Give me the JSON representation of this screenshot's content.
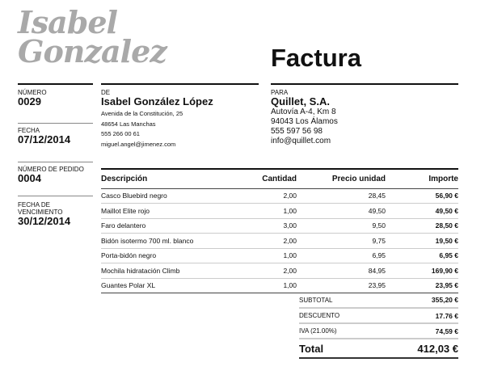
{
  "logo": {
    "line1": "Isabel",
    "line2": "Gonzalez"
  },
  "title": "Factura",
  "meta": [
    {
      "label": "NÚMERO",
      "value": "0029"
    },
    {
      "label": "FECHA",
      "value": "07/12/2014"
    },
    {
      "label": "NÚMERO DE PEDIDO",
      "value": "0004"
    },
    {
      "label": "FECHA DE VENCIMIENTO",
      "value": "30/12/2014"
    }
  ],
  "from": {
    "label": "DE",
    "name": "Isabel González López",
    "lines": [
      "Avenida de la Constitución, 25",
      "48654 Las Manchas",
      "555 266 00 61",
      "miguel.angel@jimenez.com"
    ]
  },
  "to": {
    "label": "PARA",
    "name": "Quillet, S.A.",
    "lines": [
      "Autovía A-4, Km 8",
      "94043 Los Álamos",
      "555 597 56 98",
      "info@quillet.com"
    ]
  },
  "table": {
    "headers": [
      "Descripción",
      "Cantidad",
      "Precio unidad",
      "Importe"
    ],
    "rows": [
      [
        "Casco Bluebird negro",
        "2,00",
        "28,45",
        "56,90 €"
      ],
      [
        "Maillot Elite rojo",
        "1,00",
        "49,50",
        "49,50 €"
      ],
      [
        "Faro delantero",
        "3,00",
        "9,50",
        "28,50 €"
      ],
      [
        "Bidón isotermo 700 ml. blanco",
        "2,00",
        "9,75",
        "19,50 €"
      ],
      [
        "Porta-bidón negro",
        "1,00",
        "6,95",
        "6,95 €"
      ],
      [
        "Mochila hidratación Climb",
        "2,00",
        "84,95",
        "169,90 €"
      ],
      [
        "Guantes Polar XL",
        "1,00",
        "23,95",
        "23,95 €"
      ]
    ]
  },
  "totals": [
    {
      "label": "SUBTOTAL",
      "value": "355,20 €"
    },
    {
      "label": "DESCUENTO",
      "value": "17.76 €"
    },
    {
      "label": "IVA (21.00%)",
      "value": "74,59 €"
    },
    {
      "label": "Total",
      "value": "412,03 €"
    }
  ]
}
